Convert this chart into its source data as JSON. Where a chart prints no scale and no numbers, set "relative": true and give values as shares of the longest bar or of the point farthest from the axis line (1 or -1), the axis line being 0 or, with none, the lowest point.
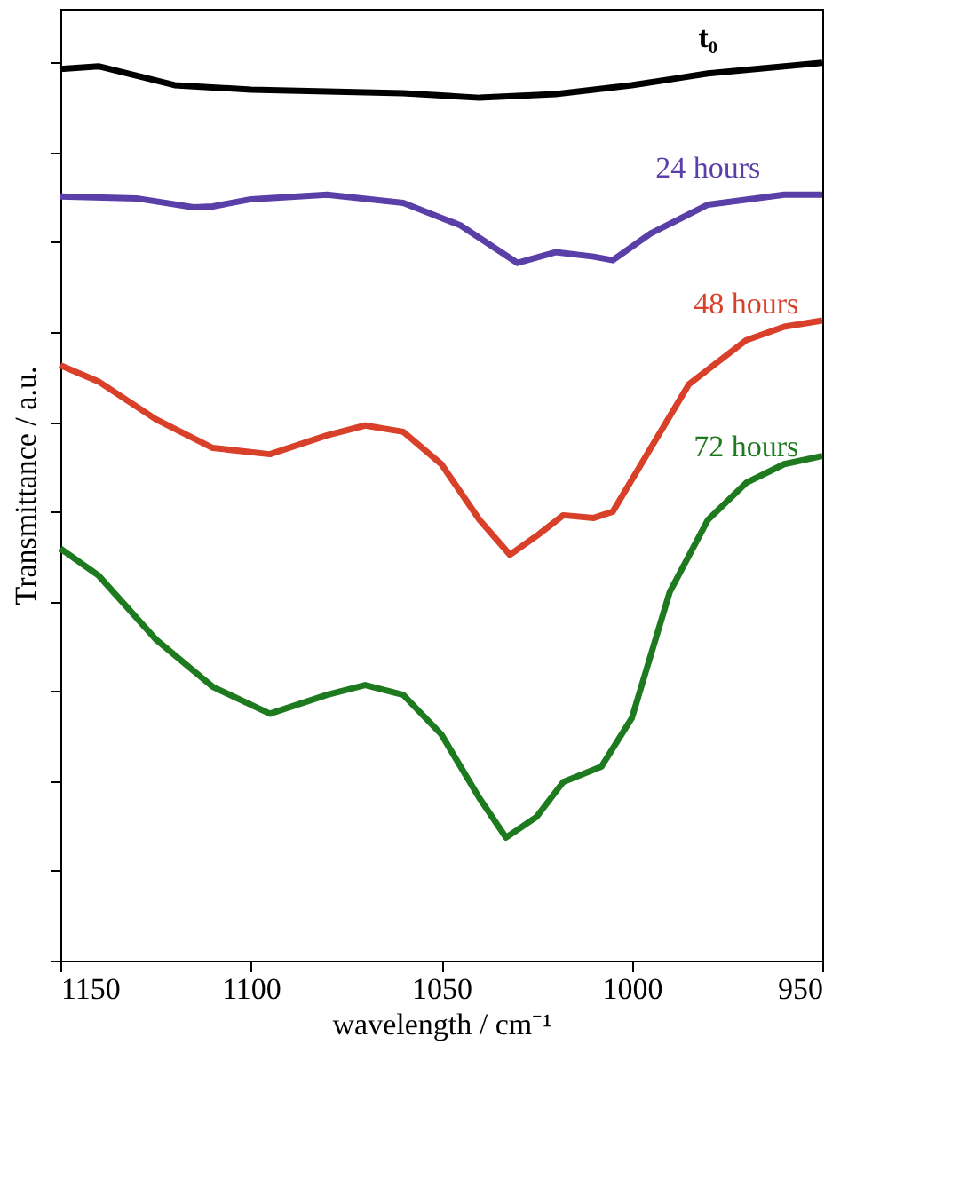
{
  "chart_data": {
    "type": "line",
    "relative": true,
    "xlabel": "wavelength / cm⁻¹",
    "ylabel": "Transmittance / a.u.",
    "xlim": [
      1150,
      950
    ],
    "xticks": [
      1150,
      1100,
      1050,
      1000,
      950
    ],
    "tick_labels": "x",
    "grid": false,
    "legend": false,
    "marker": "none",
    "line_style": "solid",
    "series": [
      {
        "name": "t₀",
        "color": "#000000",
        "x": [
          1150,
          1140,
          1120,
          1100,
          1080,
          1060,
          1040,
          1020,
          1000,
          980,
          960,
          950
        ],
        "values": [
          0.993,
          0.996,
          0.975,
          0.97,
          0.968,
          0.966,
          0.961,
          0.965,
          0.975,
          0.988,
          0.996,
          1.0
        ]
      },
      {
        "name": "24 hours",
        "color": "#5b3fa8",
        "x": [
          1150,
          1130,
          1115,
          1110,
          1100,
          1080,
          1060,
          1045,
          1030,
          1020,
          1010,
          1005,
          995,
          980,
          960,
          950
        ],
        "values": [
          0.851,
          0.849,
          0.839,
          0.84,
          0.848,
          0.853,
          0.844,
          0.819,
          0.777,
          0.789,
          0.784,
          0.78,
          0.81,
          0.842,
          0.853,
          0.853
        ]
      },
      {
        "name": "48 hours",
        "color": "#d9402a",
        "x": [
          1150,
          1140,
          1125,
          1110,
          1095,
          1080,
          1070,
          1060,
          1050,
          1040,
          1032,
          1025,
          1018,
          1010,
          1005,
          995,
          985,
          970,
          960,
          950
        ],
        "values": [
          0.663,
          0.645,
          0.603,
          0.571,
          0.564,
          0.585,
          0.596,
          0.589,
          0.553,
          0.491,
          0.452,
          0.473,
          0.496,
          0.493,
          0.5,
          0.571,
          0.642,
          0.691,
          0.706,
          0.713
        ]
      },
      {
        "name": "72 hours",
        "color": "#1e7a1e",
        "x": [
          1150,
          1140,
          1125,
          1110,
          1095,
          1080,
          1070,
          1060,
          1050,
          1040,
          1033,
          1025,
          1018,
          1008,
          1000,
          990,
          980,
          970,
          960,
          950
        ],
        "values": [
          0.459,
          0.429,
          0.358,
          0.305,
          0.275,
          0.296,
          0.307,
          0.296,
          0.252,
          0.181,
          0.137,
          0.16,
          0.199,
          0.216,
          0.27,
          0.411,
          0.491,
          0.532,
          0.553,
          0.562
        ]
      }
    ]
  }
}
